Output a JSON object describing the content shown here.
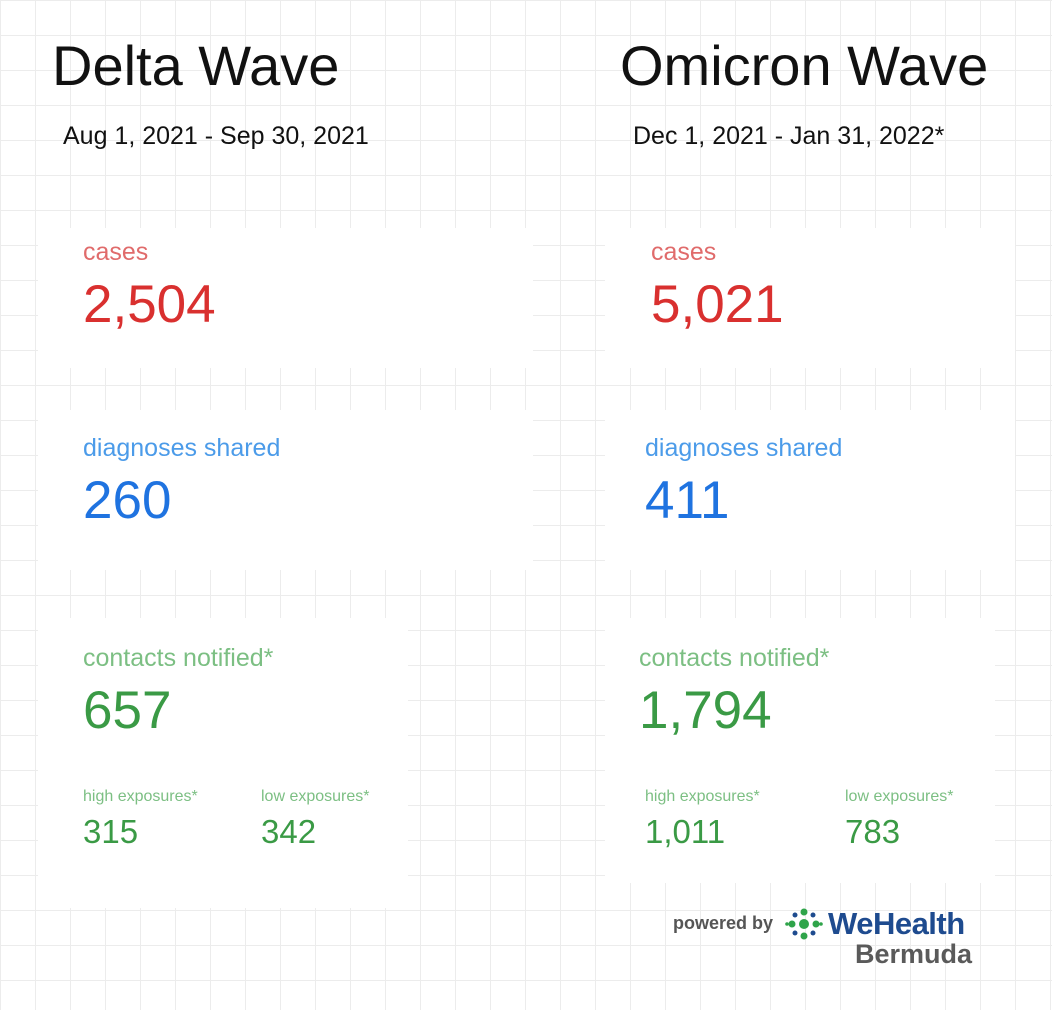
{
  "left": {
    "title": "Delta Wave",
    "date_range": "Aug 1, 2021 - Sep 30, 2021",
    "cases_label": "cases",
    "cases_value": "2,504",
    "diagnoses_label": "diagnoses shared",
    "diagnoses_value": "260",
    "contacts_label": "contacts notified*",
    "contacts_value": "657",
    "high_label": "high exposures*",
    "high_value": "315",
    "low_label": "low exposures*",
    "low_value": "342"
  },
  "right": {
    "title": "Omicron Wave",
    "date_range": "Dec 1, 2021 - Jan 31, 2022*",
    "cases_label": "cases",
    "cases_value": "5,021",
    "diagnoses_label": "diagnoses shared",
    "diagnoses_value": "411",
    "contacts_label": "contacts notified*",
    "contacts_value": "1,794",
    "high_label": "high exposures*",
    "high_value": "1,011",
    "low_label": "low exposures*",
    "low_value": "783"
  },
  "footer": {
    "powered_by": "powered by",
    "brand": "WeHealth",
    "region": "Bermuda",
    "logo_icon": "wehealth-logo-icon"
  },
  "colors": {
    "cases_label": "#e06b6b",
    "cases_value": "#d9302f",
    "diagnoses_label": "#4b9be9",
    "diagnoses_value": "#1f73e0",
    "contacts_label": "#7cbf83",
    "contacts_value": "#3a9a45",
    "brand": "#1e4b8f",
    "logo_green": "#2fa44a"
  }
}
